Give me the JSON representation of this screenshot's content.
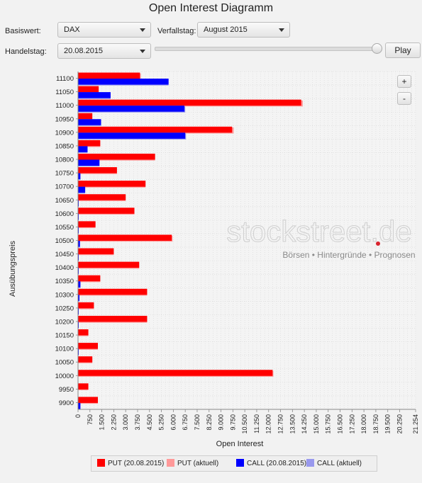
{
  "header": {
    "title": "Open Interest Diagramm"
  },
  "controls": {
    "basiswert_label": "Basiswert:",
    "basiswert_value": "DAX",
    "verfallstag_label": "Verfallstag:",
    "verfallstag_value": "August 2015",
    "handelstag_label": "Handelstag:",
    "handelstag_value": "20.08.2015",
    "slider_value": 1.0,
    "play_label": "Play",
    "zoom_in_label": "+",
    "zoom_out_label": "-"
  },
  "watermark": {
    "brand": "stockstreet.de",
    "tagline_parts": [
      "Börsen",
      "Hintergründe",
      "Prognosen"
    ],
    "dot_color": "#d9232d"
  },
  "chart_data": {
    "type": "bar",
    "orientation": "horizontal",
    "title": "",
    "xlabel": "Open Interest",
    "ylabel": "Ausübungspreis",
    "xlim": [
      0,
      21254
    ],
    "x_ticks": [
      "0",
      "750",
      "1.500",
      "2.250",
      "3.000",
      "3.750",
      "4.500",
      "5.250",
      "6.000",
      "6.750",
      "7.500",
      "8.250",
      "9.000",
      "9.750",
      "10.500",
      "11.250",
      "12.000",
      "12.750",
      "13.500",
      "14.250",
      "15.000",
      "15.750",
      "16.500",
      "17.250",
      "18.000",
      "18.750",
      "19.500",
      "20.250",
      "21.254"
    ],
    "x_tick_values": [
      0,
      750,
      1500,
      2250,
      3000,
      3750,
      4500,
      5250,
      6000,
      6750,
      7500,
      8250,
      9000,
      9750,
      10500,
      11250,
      12000,
      12750,
      13500,
      14250,
      15000,
      15750,
      16500,
      17250,
      18000,
      18750,
      19500,
      20250,
      21254
    ],
    "grid": true,
    "categories": [
      "11100",
      "11050",
      "11000",
      "10950",
      "10900",
      "10850",
      "10800",
      "10750",
      "10700",
      "10650",
      "10600",
      "10550",
      "10500",
      "10450",
      "10400",
      "10350",
      "10300",
      "10250",
      "10200",
      "10150",
      "10100",
      "10050",
      "10000",
      "9950",
      "9900"
    ],
    "series": [
      {
        "name": "PUT (20.08.2015)",
        "color": "#ff0000",
        "values": [
          3900,
          1300,
          14050,
          900,
          9700,
          1400,
          4850,
          2450,
          4250,
          3000,
          3550,
          1100,
          5900,
          2250,
          3850,
          1400,
          4350,
          1000,
          4350,
          650,
          1250,
          900,
          12250,
          650,
          1250
        ]
      },
      {
        "name": "PUT (aktuell)",
        "color": "#ff9999",
        "values": [
          3950,
          1300,
          14150,
          900,
          9800,
          1400,
          4850,
          2450,
          4250,
          3000,
          3550,
          1100,
          5950,
          2250,
          3850,
          1400,
          4350,
          1000,
          4350,
          650,
          1250,
          900,
          12300,
          650,
          1250
        ]
      },
      {
        "name": "CALL (20.08.2015)",
        "color": "#0000ff",
        "values": [
          5700,
          2050,
          6700,
          1450,
          6750,
          600,
          1350,
          150,
          450,
          30,
          30,
          30,
          120,
          30,
          30,
          150,
          90,
          30,
          30,
          0,
          30,
          0,
          0,
          0,
          150
        ]
      },
      {
        "name": "CALL (aktuell)",
        "color": "#9999ee",
        "values": [
          5700,
          2050,
          6750,
          1450,
          6800,
          600,
          1350,
          150,
          450,
          30,
          30,
          30,
          120,
          30,
          30,
          150,
          90,
          30,
          30,
          0,
          30,
          0,
          0,
          0,
          150
        ]
      }
    ],
    "legend": "bottom"
  }
}
